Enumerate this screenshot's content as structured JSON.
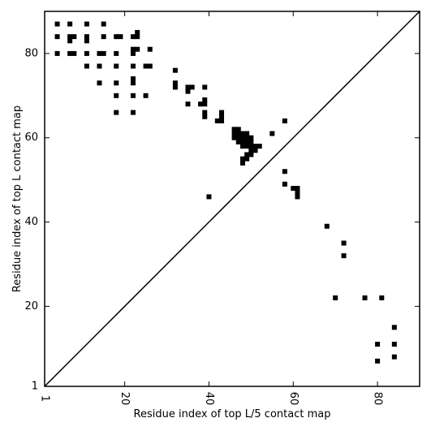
{
  "chart_data": {
    "type": "scatter",
    "xlabel": "Residue index of top L/5 contact map",
    "ylabel": "Residue index of top L contact map",
    "xlim": [
      1,
      90
    ],
    "ylim": [
      1,
      90
    ],
    "xticks": [
      1,
      20,
      40,
      60,
      80
    ],
    "yticks": [
      1,
      20,
      40,
      60,
      80
    ],
    "xtick_labels": [
      "1",
      "20",
      "40",
      "60",
      "80"
    ],
    "ytick_labels": [
      "1",
      "20",
      "40",
      "60",
      "80"
    ],
    "marker": "square",
    "marker_color": "#000000",
    "diagonal_line": true,
    "grid": false,
    "series": [
      {
        "points": [
          [
            4,
            87
          ],
          [
            7,
            87
          ],
          [
            11,
            87
          ],
          [
            15,
            87
          ],
          [
            4,
            84
          ],
          [
            7,
            84
          ],
          [
            8,
            84
          ],
          [
            11,
            84
          ],
          [
            15,
            84
          ],
          [
            18,
            84
          ],
          [
            19,
            84
          ],
          [
            22,
            84
          ],
          [
            23,
            84
          ],
          [
            23,
            85
          ],
          [
            7,
            83
          ],
          [
            11,
            83
          ],
          [
            22,
            81
          ],
          [
            23,
            81
          ],
          [
            26,
            81
          ],
          [
            22,
            80
          ],
          [
            4,
            80
          ],
          [
            7,
            80
          ],
          [
            8,
            80
          ],
          [
            11,
            80
          ],
          [
            14,
            80
          ],
          [
            15,
            80
          ],
          [
            18,
            80
          ],
          [
            11,
            77
          ],
          [
            14,
            77
          ],
          [
            18,
            77
          ],
          [
            22,
            77
          ],
          [
            25,
            77
          ],
          [
            26,
            77
          ],
          [
            32,
            76
          ],
          [
            22,
            74
          ],
          [
            22,
            73
          ],
          [
            14,
            73
          ],
          [
            18,
            73
          ],
          [
            32,
            73
          ],
          [
            32,
            72
          ],
          [
            35,
            72
          ],
          [
            36,
            72
          ],
          [
            39,
            72
          ],
          [
            35,
            71
          ],
          [
            18,
            70
          ],
          [
            22,
            70
          ],
          [
            25,
            70
          ],
          [
            39,
            69
          ],
          [
            35,
            68
          ],
          [
            38,
            68
          ],
          [
            39,
            68
          ],
          [
            18,
            66
          ],
          [
            22,
            66
          ],
          [
            39,
            66
          ],
          [
            43,
            66
          ],
          [
            39,
            65
          ],
          [
            43,
            65
          ],
          [
            42,
            64
          ],
          [
            43,
            64
          ],
          [
            58,
            64
          ],
          [
            46,
            62
          ],
          [
            47,
            62
          ],
          [
            46,
            61
          ],
          [
            47,
            61
          ],
          [
            48,
            61
          ],
          [
            49,
            61
          ],
          [
            55,
            61
          ],
          [
            46,
            60
          ],
          [
            47,
            60
          ],
          [
            48,
            60
          ],
          [
            49,
            60
          ],
          [
            50,
            60
          ],
          [
            47,
            59
          ],
          [
            48,
            59
          ],
          [
            49,
            59
          ],
          [
            50,
            59
          ],
          [
            48,
            58
          ],
          [
            49,
            58
          ],
          [
            50,
            58
          ],
          [
            51,
            58
          ],
          [
            52,
            58
          ],
          [
            50,
            57
          ],
          [
            51,
            57
          ],
          [
            49,
            56
          ],
          [
            50,
            56
          ],
          [
            48,
            55
          ],
          [
            49,
            55
          ],
          [
            48,
            54
          ],
          [
            58,
            52
          ],
          [
            58,
            49
          ],
          [
            60,
            48
          ],
          [
            61,
            48
          ],
          [
            61,
            47
          ],
          [
            61,
            46
          ],
          [
            40,
            46
          ],
          [
            68,
            39
          ],
          [
            72,
            35
          ],
          [
            72,
            32
          ],
          [
            70,
            22
          ],
          [
            77,
            22
          ],
          [
            81,
            22
          ],
          [
            84,
            15
          ],
          [
            80,
            11
          ],
          [
            84,
            11
          ],
          [
            84,
            8
          ],
          [
            80,
            7
          ]
        ]
      }
    ]
  }
}
